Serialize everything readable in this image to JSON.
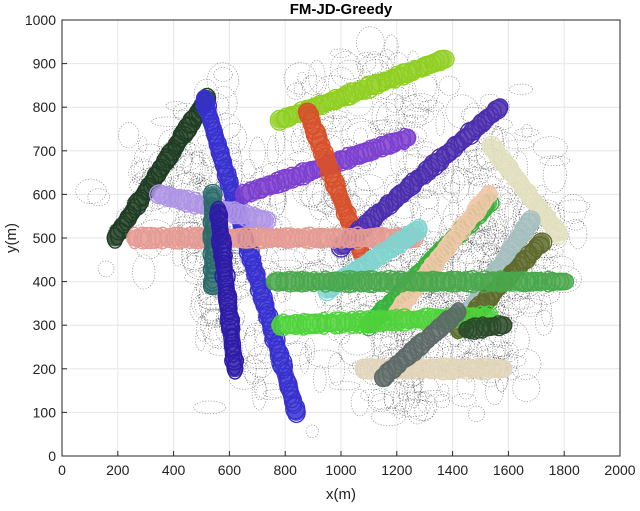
{
  "chart_data": {
    "type": "scatter",
    "title": "FM-JD-Greedy",
    "xlabel": "x(m)",
    "ylabel": "y(m)",
    "xlim": [
      0,
      2000
    ],
    "ylim": [
      0,
      1000
    ],
    "xticks": [
      "0",
      "200",
      "400",
      "600",
      "800",
      "1000",
      "1200",
      "1400",
      "1600",
      "1800",
      "2000"
    ],
    "yticks": [
      "0",
      "100",
      "200",
      "300",
      "400",
      "500",
      "600",
      "700",
      "800",
      "900",
      "1000"
    ],
    "grid": true,
    "legend": "none",
    "trajectories": [
      {
        "color": "#8fcf1f",
        "start": [
          780,
          770
        ],
        "end": [
          1370,
          910
        ]
      },
      {
        "color": "#1e3d22",
        "start": [
          190,
          500
        ],
        "end": [
          520,
          820
        ]
      },
      {
        "color": "#3730d0",
        "start": [
          510,
          820
        ],
        "end": [
          840,
          100
        ]
      },
      {
        "color": "#7c3fcf",
        "start": [
          650,
          600
        ],
        "end": [
          1240,
          730
        ]
      },
      {
        "color": "#d8502a",
        "start": [
          880,
          790
        ],
        "end": [
          1070,
          470
        ]
      },
      {
        "color": "#4b2dae",
        "start": [
          1000,
          480
        ],
        "end": [
          1570,
          800
        ]
      },
      {
        "color": "#ae94e6",
        "start": [
          350,
          600
        ],
        "end": [
          730,
          540
        ]
      },
      {
        "color": "#e59a93",
        "start": [
          260,
          500
        ],
        "end": [
          1260,
          500
        ]
      },
      {
        "color": "#2a6a6a",
        "start": [
          540,
          600
        ],
        "end": [
          540,
          390
        ]
      },
      {
        "color": "#2c1aa8",
        "start": [
          560,
          560
        ],
        "end": [
          620,
          200
        ]
      },
      {
        "color": "#e2e0bf",
        "start": [
          1540,
          710
        ],
        "end": [
          1780,
          510
        ]
      },
      {
        "color": "#a5bfbf",
        "start": [
          1450,
          320
        ],
        "end": [
          1680,
          540
        ]
      },
      {
        "color": "#5e6a2c",
        "start": [
          1420,
          290
        ],
        "end": [
          1720,
          490
        ]
      },
      {
        "color": "#36b23a",
        "start": [
          1100,
          300
        ],
        "end": [
          1530,
          580
        ]
      },
      {
        "color": "#7fd4d0",
        "start": [
          950,
          380
        ],
        "end": [
          1280,
          520
        ]
      },
      {
        "color": "#f0c8a8",
        "start": [
          1200,
          330
        ],
        "end": [
          1530,
          600
        ]
      },
      {
        "color": "#4aa84c",
        "start": [
          760,
          400
        ],
        "end": [
          1800,
          400
        ]
      },
      {
        "color": "#4fd33a",
        "start": [
          780,
          300
        ],
        "end": [
          1530,
          320
        ]
      },
      {
        "color": "#e2d5ba",
        "start": [
          1080,
          200
        ],
        "end": [
          1580,
          200
        ]
      },
      {
        "color": "#5d6a68",
        "start": [
          1150,
          180
        ],
        "end": [
          1420,
          330
        ]
      },
      {
        "color": "#2a4a2a",
        "start": [
          1450,
          290
        ],
        "end": [
          1580,
          300
        ]
      }
    ]
  }
}
